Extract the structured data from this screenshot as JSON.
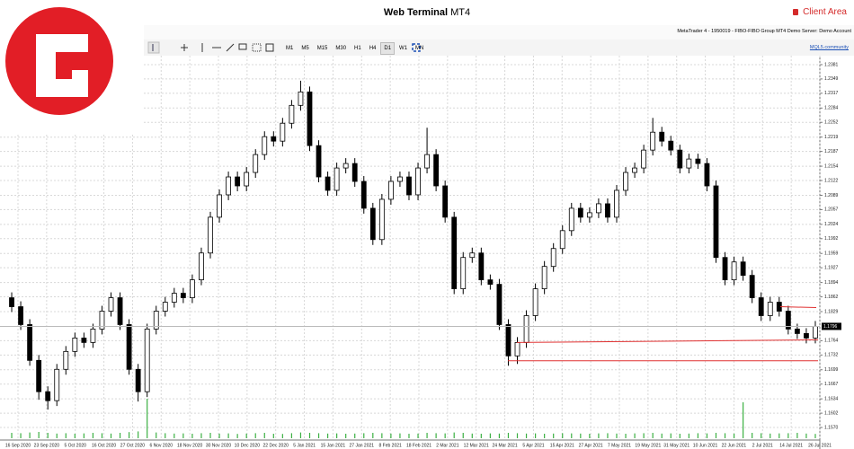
{
  "header": {
    "title": "Web Terminal",
    "subtitle": "MT4",
    "client_area": "Client Area"
  },
  "toolbar": {
    "timeframes": [
      "M1",
      "M5",
      "M15",
      "M30",
      "H1",
      "H4",
      "D1",
      "W1",
      "MN"
    ],
    "account_info": "MetaTrader 4 - 1950019 - FIBO-FIBO Group MT4 Demo Server: Demo Account",
    "community": "MQL5.community"
  },
  "chart_data": {
    "type": "candlestick",
    "x_labels": [
      "16 Sep 2020",
      "23 Sep 2020",
      "5 Oct 2020",
      "16 Oct 2020",
      "27 Oct 2020",
      "6 Nov 2020",
      "18 Nov 2020",
      "30 Nov 2020",
      "10 Dec 2020",
      "22 Dec 2020",
      "5 Jan 2021",
      "15 Jan 2021",
      "27 Jan 2021",
      "8 Feb 2021",
      "18 Feb 2021",
      "2 Mar 2021",
      "12 Mar 2021",
      "24 Mar 2021",
      "5 Apr 2021",
      "15 Apr 2021",
      "27 Apr 2021",
      "7 May 2021",
      "19 May 2021",
      "31 May 2021",
      "10 Jun 2021",
      "22 Jun 2021",
      "2 Jul 2021",
      "14 Jul 2021",
      "26 Jul 2021"
    ],
    "open": [
      1.186,
      1.184,
      1.18,
      1.172,
      1.165,
      1.163,
      1.17,
      1.174,
      1.177,
      1.176,
      1.179,
      1.183,
      1.186,
      1.18,
      1.17,
      1.165,
      1.179,
      1.183,
      1.185,
      1.187,
      1.186,
      1.19,
      1.196,
      1.204,
      1.209,
      1.213,
      1.211,
      1.214,
      1.218,
      1.222,
      1.221,
      1.225,
      1.229,
      1.232,
      1.22,
      1.213,
      1.21,
      1.215,
      1.216,
      1.212,
      1.206,
      1.199,
      1.208,
      1.212,
      1.213,
      1.209,
      1.215,
      1.218,
      1.211,
      1.204,
      1.188,
      1.195,
      1.196,
      1.19,
      1.189,
      1.18,
      1.173,
      1.176,
      1.182,
      1.188,
      1.193,
      1.197,
      1.201,
      1.206,
      1.204,
      1.205,
      1.207,
      1.204,
      1.21,
      1.214,
      1.215,
      1.219,
      1.223,
      1.221,
      1.219,
      1.215,
      1.217,
      1.216,
      1.211,
      1.195,
      1.19,
      1.194,
      1.191,
      1.186,
      1.182,
      1.185,
      1.183,
      1.179,
      1.178,
      1.177
    ],
    "high": [
      1.1872,
      1.1852,
      1.1812,
      1.1732,
      1.1662,
      1.1712,
      1.1752,
      1.1782,
      1.1782,
      1.1802,
      1.1842,
      1.1872,
      1.1872,
      1.1812,
      1.1712,
      1.1802,
      1.1842,
      1.1862,
      1.1882,
      1.1882,
      1.1912,
      1.1972,
      1.2052,
      1.2102,
      1.2142,
      1.2142,
      1.2152,
      1.2192,
      1.2232,
      1.2232,
      1.2262,
      1.2302,
      1.2345,
      1.2332,
      1.2212,
      1.2142,
      1.2162,
      1.2172,
      1.2172,
      1.2132,
      1.2072,
      1.2092,
      1.2132,
      1.2142,
      1.2142,
      1.2162,
      1.224,
      1.2192,
      1.2122,
      1.2052,
      1.1962,
      1.1972,
      1.1972,
      1.1912,
      1.1902,
      1.1812,
      1.1772,
      1.1832,
      1.1892,
      1.1942,
      1.1982,
      1.2022,
      1.2072,
      1.2072,
      1.2062,
      1.2082,
      1.2082,
      1.2112,
      1.2152,
      1.2162,
      1.2202,
      1.2262,
      1.2242,
      1.2222,
      1.2202,
      1.2182,
      1.2182,
      1.2172,
      1.2122,
      1.1962,
      1.1952,
      1.1952,
      1.1922,
      1.1872,
      1.1862,
      1.1862,
      1.1842,
      1.1802,
      1.1792,
      1.1808
    ],
    "low": [
      1.1828,
      1.1788,
      1.1708,
      1.1632,
      1.161,
      1.1618,
      1.1688,
      1.1728,
      1.1748,
      1.1748,
      1.1778,
      1.1818,
      1.1788,
      1.1688,
      1.1628,
      1.1638,
      1.1778,
      1.1818,
      1.1838,
      1.1848,
      1.1848,
      1.1888,
      1.1948,
      1.2028,
      1.2078,
      1.2098,
      1.2098,
      1.2128,
      1.2168,
      1.2198,
      1.2198,
      1.2238,
      1.2278,
      1.2188,
      1.2118,
      1.2088,
      1.2088,
      1.2138,
      1.2108,
      1.2048,
      1.1978,
      1.1978,
      1.2068,
      1.2108,
      1.2078,
      1.2078,
      1.2138,
      1.2098,
      1.2028,
      1.1868,
      1.1868,
      1.1938,
      1.1888,
      1.1878,
      1.1788,
      1.1708,
      1.1712,
      1.1748,
      1.1808,
      1.1868,
      1.1918,
      1.1958,
      1.1998,
      1.2028,
      1.2028,
      1.2038,
      1.2028,
      1.2028,
      1.2088,
      1.2128,
      1.2138,
      1.2178,
      1.2198,
      1.2178,
      1.2138,
      1.2138,
      1.2148,
      1.2098,
      1.1938,
      1.1888,
      1.1888,
      1.1898,
      1.1848,
      1.1808,
      1.1808,
      1.1818,
      1.1778,
      1.1768,
      1.1758,
      1.1758
    ],
    "close": [
      1.184,
      1.18,
      1.172,
      1.165,
      1.163,
      1.17,
      1.174,
      1.177,
      1.176,
      1.179,
      1.183,
      1.186,
      1.18,
      1.17,
      1.165,
      1.179,
      1.183,
      1.185,
      1.187,
      1.186,
      1.19,
      1.196,
      1.204,
      1.209,
      1.213,
      1.211,
      1.214,
      1.218,
      1.222,
      1.221,
      1.225,
      1.229,
      1.232,
      1.22,
      1.213,
      1.21,
      1.215,
      1.216,
      1.212,
      1.206,
      1.199,
      1.208,
      1.212,
      1.213,
      1.209,
      1.215,
      1.218,
      1.211,
      1.204,
      1.188,
      1.195,
      1.196,
      1.19,
      1.189,
      1.18,
      1.173,
      1.176,
      1.182,
      1.188,
      1.193,
      1.197,
      1.201,
      1.206,
      1.204,
      1.205,
      1.207,
      1.204,
      1.21,
      1.214,
      1.215,
      1.219,
      1.223,
      1.221,
      1.219,
      1.215,
      1.217,
      1.216,
      1.211,
      1.195,
      1.19,
      1.194,
      1.191,
      1.186,
      1.182,
      1.185,
      1.183,
      1.179,
      1.178,
      1.177,
      1.1796
    ],
    "volume": [
      30,
      28,
      32,
      35,
      30,
      26,
      28,
      25,
      27,
      30,
      28,
      26,
      30,
      34,
      38,
      220,
      32,
      28,
      26,
      27,
      25,
      28,
      30,
      26,
      27,
      24,
      26,
      28,
      30,
      25,
      24,
      28,
      32,
      30,
      28,
      26,
      27,
      25,
      26,
      28,
      30,
      28,
      26,
      27,
      25,
      26,
      30,
      28,
      27,
      32,
      30,
      26,
      25,
      27,
      26,
      30,
      28,
      26,
      27,
      25,
      26,
      28,
      27,
      26,
      25,
      27,
      28,
      26,
      25,
      27,
      28,
      30,
      26,
      27,
      25,
      26,
      28,
      27,
      30,
      28,
      26,
      200,
      30,
      28,
      26,
      27,
      28,
      30,
      26,
      24
    ],
    "volume_lim": [
      0,
      250
    ],
    "ylim": [
      1.1542,
      1.2397
    ],
    "yticks": [
      1.2381,
      1.2349,
      1.2317,
      1.2284,
      1.2252,
      1.2219,
      1.2187,
      1.2154,
      1.2122,
      1.2089,
      1.2057,
      1.2024,
      1.1992,
      1.1959,
      1.1927,
      1.1894,
      1.1862,
      1.1829,
      1.1764,
      1.1732,
      1.1699,
      1.1667,
      1.1634,
      1.1602,
      {
        "value": 1.157,
        "label": "1.1570"
      }
    ],
    "current_price": 1.1796,
    "trend_lines": [
      [
        1.176,
        1.1766
      ],
      [
        1.1719,
        1.1719
      ],
      [
        1.184,
        1.1838
      ]
    ],
    "grid": true,
    "bull_color": "#ffffff",
    "bear_color": "#000000",
    "line_color": "#e03030",
    "volume_color": "#3cb043"
  }
}
